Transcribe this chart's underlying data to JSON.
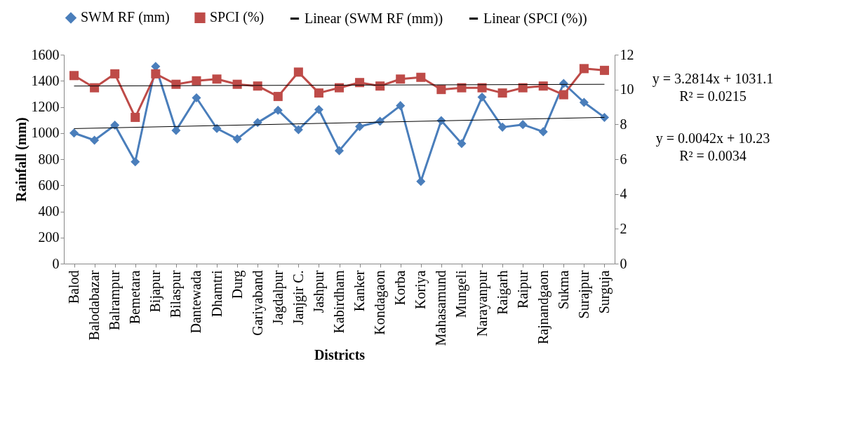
{
  "chart_data": {
    "type": "line",
    "xlabel": "Districts",
    "ylabel": "Rainfall (mm)",
    "categories": [
      "Balod",
      "Balodabazar",
      "Balrampur",
      "Bemetara",
      "Bijapur",
      "Bilaspur",
      "Dantewada",
      "Dhamtri",
      "Durg",
      "Gariyaband",
      "Jagdalpur",
      "Janjgir C.",
      "Jashpur",
      "Kabirdham",
      "Kanker",
      "Kondagaon",
      "Korba",
      "Koriya",
      "Mahasamund",
      "Mungeli",
      "Narayanpur",
      "Raigarh",
      "Raipur",
      "Rajnandgaon",
      "Sukma",
      "Surajpur",
      "Surguja"
    ],
    "series": [
      {
        "name": "SWM RF (mm)",
        "color": "#4a7ebb",
        "marker": "diamond",
        "values": [
          1000,
          945,
          1060,
          780,
          1510,
          1020,
          1270,
          1035,
          955,
          1080,
          1175,
          1025,
          1180,
          865,
          1050,
          1090,
          1210,
          630,
          1095,
          920,
          1275,
          1045,
          1065,
          1010,
          1380,
          1235,
          1120
        ]
      },
      {
        "name": "SPCI (%)",
        "color": "#be4b48",
        "marker": "square",
        "axis": "y2",
        "values": [
          10.8,
          10.1,
          10.9,
          8.4,
          10.9,
          10.3,
          10.5,
          10.6,
          10.3,
          10.2,
          9.6,
          11.0,
          9.8,
          10.1,
          10.4,
          10.2,
          10.6,
          10.7,
          10.0,
          10.1,
          10.1,
          9.8,
          10.1,
          10.2,
          9.7,
          11.2,
          11.1
        ]
      },
      {
        "name": "Linear (SWM RF (mm))",
        "color": "#000000",
        "marker": "none",
        "x": [
          "Balod",
          "Surguja"
        ],
        "values": [
          1034,
          1120
        ]
      },
      {
        "name": "Linear (SPCI (%))",
        "color": "#000000",
        "marker": "none",
        "axis": "y2",
        "x": [
          "Balod",
          "Surguja"
        ],
        "values": [
          10.2,
          10.3
        ]
      }
    ],
    "ylim": [
      0,
      1600
    ],
    "yticks": [
      0,
      200,
      400,
      600,
      800,
      1000,
      1200,
      1400,
      1600
    ],
    "y2lim": [
      0,
      12
    ],
    "y2ticks": [
      0,
      2,
      4,
      6,
      8,
      10,
      12
    ],
    "annotations": [
      "y = 3.2814x + 1031.1",
      "R² = 0.0215",
      "y = 0.0042x + 10.23",
      "R² = 0.0034"
    ],
    "grid": false,
    "legend": "top"
  }
}
